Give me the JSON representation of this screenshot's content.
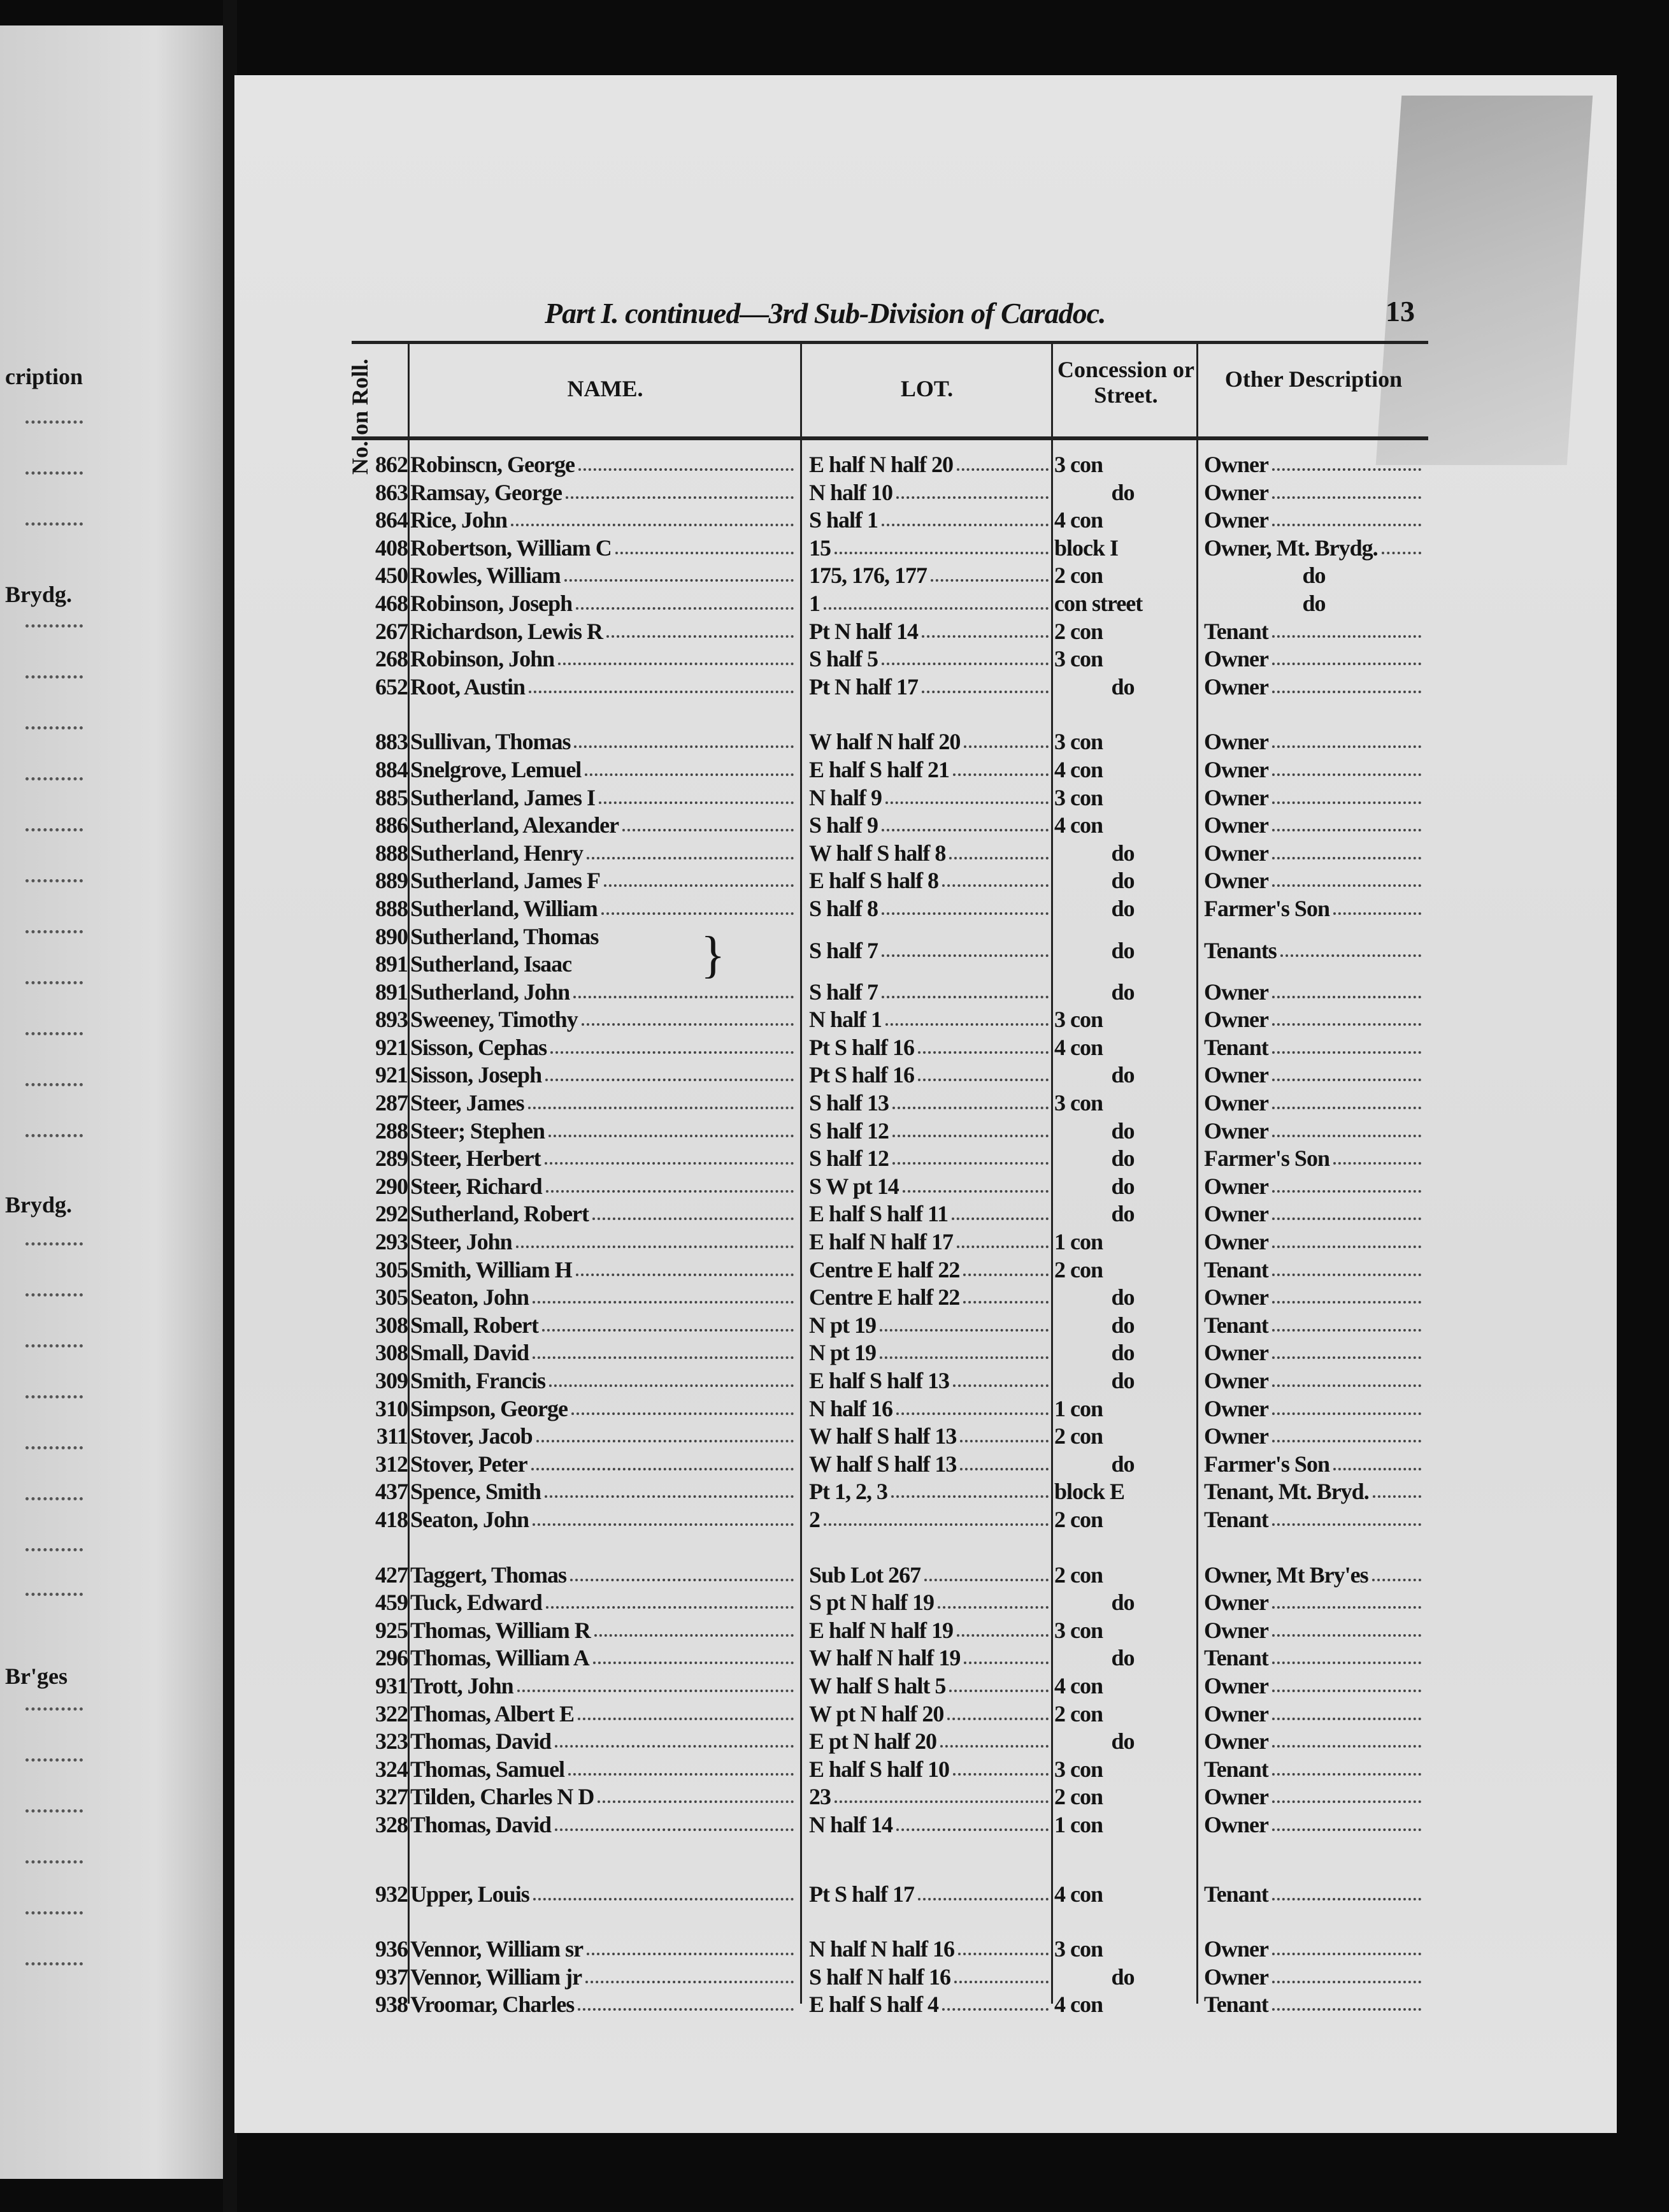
{
  "left_page": {
    "fragments": [
      "cription",
      "Brydg.",
      "Brydg.",
      "Br'ges"
    ]
  },
  "header": {
    "title": "Part I. continued—3rd Sub-Division of Caradoc.",
    "page_number": "13",
    "columns": {
      "roll": "No. on Roll.",
      "name": "NAME.",
      "lot": "LOT.",
      "concession": "Concession or Street.",
      "other": "Other Description"
    }
  },
  "groups": [
    {
      "rows": [
        {
          "roll": "862",
          "name": "Robinscn, George",
          "lot": "E half N half 20",
          "conc": "3 con",
          "desc": "Owner"
        },
        {
          "roll": "863",
          "name": "Ramsay, George",
          "lot": "N half 10",
          "conc": "do",
          "desc": "Owner"
        },
        {
          "roll": "864",
          "name": "Rice, John",
          "lot": "S half 1",
          "conc": "4 con",
          "desc": "Owner"
        },
        {
          "roll": "408",
          "name": "Robertson, William C",
          "lot": "15",
          "conc": "block I",
          "desc": "Owner, Mt. Brydg."
        },
        {
          "roll": "450",
          "name": "Rowles, William",
          "lot": "175, 176, 177",
          "conc": "2 con",
          "desc": "do"
        },
        {
          "roll": "468",
          "name": "Robinson, Joseph",
          "lot": "1",
          "conc": "con street",
          "desc": "do"
        },
        {
          "roll": "267",
          "name": "Richardson, Lewis R",
          "lot": "Pt N half 14",
          "conc": "2 con",
          "desc": "Tenant"
        },
        {
          "roll": "268",
          "name": "Robinson, John",
          "lot": "S half 5",
          "conc": "3 con",
          "desc": "Owner"
        },
        {
          "roll": "652",
          "name": "Root, Austin",
          "lot": "Pt N half 17",
          "conc": "do",
          "desc": "Owner"
        }
      ]
    },
    {
      "rows": [
        {
          "roll": "883",
          "name": "Sullivan, Thomas",
          "lot": "W half N half 20",
          "conc": "3 con",
          "desc": "Owner"
        },
        {
          "roll": "884",
          "name": "Snelgrove, Lemuel",
          "lot": "E half S half 21",
          "conc": "4 con",
          "desc": "Owner"
        },
        {
          "roll": "885",
          "name": "Sutherland, James I",
          "lot": "N half 9",
          "conc": "3 con",
          "desc": "Owner"
        },
        {
          "roll": "886",
          "name": "Sutherland, Alexander",
          "lot": "S half 9",
          "conc": "4 con",
          "desc": "Owner"
        },
        {
          "roll": "888",
          "name": "Sutherland, Henry",
          "lot": "W half S half 8",
          "conc": "do",
          "desc": "Owner"
        },
        {
          "roll": "889",
          "name": "Sutherland, James F",
          "lot": "E half S half 8",
          "conc": "do",
          "desc": "Owner"
        },
        {
          "roll": "888",
          "name": "Sutherland, William",
          "lot": "S half 8",
          "conc": "do",
          "desc": "Farmer's Son"
        },
        {
          "roll": "890",
          "name": "Sutherland, Thomas",
          "lot": "S half 7",
          "conc": "do",
          "desc": "Tenants",
          "brace": true
        },
        {
          "roll": "891",
          "name": "Sutherland, Isaac",
          "lot": "",
          "conc": "",
          "desc": "",
          "braced": true
        },
        {
          "roll": "891",
          "name": "Sutherland, John",
          "lot": "S half 7",
          "conc": "do",
          "desc": "Owner"
        },
        {
          "roll": "893",
          "name": "Sweeney, Timothy",
          "lot": "N half 1",
          "conc": "3 con",
          "desc": "Owner"
        },
        {
          "roll": "921",
          "name": "Sisson, Cephas",
          "lot": "Pt S half 16",
          "conc": "4 con",
          "desc": "Tenant"
        },
        {
          "roll": "921",
          "name": "Sisson, Joseph",
          "lot": "Pt S half 16",
          "conc": "do",
          "desc": "Owner"
        },
        {
          "roll": "287",
          "name": "Steer, James",
          "lot": "S half 13",
          "conc": "3 con",
          "desc": "Owner"
        },
        {
          "roll": "288",
          "name": "Steer; Stephen",
          "lot": "S half 12",
          "conc": "do",
          "desc": "Owner"
        },
        {
          "roll": "289",
          "name": "Steer, Herbert",
          "lot": "S half 12",
          "conc": "do",
          "desc": "Farmer's Son"
        },
        {
          "roll": "290",
          "name": "Steer, Richard",
          "lot": "S W pt 14",
          "conc": "do",
          "desc": "Owner"
        },
        {
          "roll": "292",
          "name": "Sutherland, Robert",
          "lot": "E half S half 11",
          "conc": "do",
          "desc": "Owner"
        },
        {
          "roll": "293",
          "name": "Steer, John",
          "lot": "E half N half 17",
          "conc": "1 con",
          "desc": "Owner"
        },
        {
          "roll": "305",
          "name": "Smith, William H",
          "lot": "Centre E half 22",
          "conc": "2 con",
          "desc": "Tenant"
        },
        {
          "roll": "305",
          "name": "Seaton, John",
          "lot": "Centre E half 22",
          "conc": "do",
          "desc": "Owner"
        },
        {
          "roll": "308",
          "name": "Small, Robert",
          "lot": "N pt 19",
          "conc": "do",
          "desc": "Tenant"
        },
        {
          "roll": "308",
          "name": "Small, David",
          "lot": "N pt 19",
          "conc": "do",
          "desc": "Owner"
        },
        {
          "roll": "309",
          "name": "Smith, Francis",
          "lot": "E half S half 13",
          "conc": "do",
          "desc": "Owner"
        },
        {
          "roll": "310",
          "name": "Simpson, George",
          "lot": "N half 16",
          "conc": "1 con",
          "desc": "Owner"
        },
        {
          "roll": "311",
          "name": "Stover, Jacob",
          "lot": "W half S half 13",
          "conc": "2 con",
          "desc": "Owner"
        },
        {
          "roll": "312",
          "name": "Stover, Peter",
          "lot": "W half S half 13",
          "conc": "do",
          "desc": "Farmer's Son"
        },
        {
          "roll": "437",
          "name": "Spence, Smith",
          "lot": "Pt 1, 2, 3",
          "conc": "block E",
          "desc": "Tenant, Mt. Bryd."
        },
        {
          "roll": "418",
          "name": "Seaton, John",
          "lot": "2",
          "conc": "2 con",
          "desc": "Tenant"
        }
      ]
    },
    {
      "rows": [
        {
          "roll": "427",
          "name": "Taggert, Thomas",
          "lot": "Sub Lot 267",
          "conc": "2 con",
          "desc": "Owner, Mt Bry'es"
        },
        {
          "roll": "459",
          "name": "Tuck, Edward",
          "lot": "S pt N half 19",
          "conc": "do",
          "desc": "Owner"
        },
        {
          "roll": "925",
          "name": "Thomas, William R",
          "lot": "E half N half 19",
          "conc": "3 con",
          "desc": "Owner"
        },
        {
          "roll": "296",
          "name": "Thomas, William A",
          "lot": "W half N half 19",
          "conc": "do",
          "desc": "Tenant"
        },
        {
          "roll": "931",
          "name": "Trott, John",
          "lot": "W half S halt 5",
          "conc": "4 con",
          "desc": "Owner"
        },
        {
          "roll": "322",
          "name": "Thomas, Albert E",
          "lot": "W pt N half 20",
          "conc": "2 con",
          "desc": "Owner"
        },
        {
          "roll": "323",
          "name": "Thomas, David",
          "lot": "E pt N half 20",
          "conc": "do",
          "desc": "Owner"
        },
        {
          "roll": "324",
          "name": "Thomas, Samuel",
          "lot": "E half S half 10",
          "conc": "3 con",
          "desc": "Tenant"
        },
        {
          "roll": "327",
          "name": "Tilden, Charles N D",
          "lot": "23",
          "conc": "2 con",
          "desc": "Owner"
        },
        {
          "roll": "328",
          "name": "Thomas, David",
          "lot": "N half 14",
          "conc": "1 con",
          "desc": "Owner"
        }
      ]
    },
    {
      "rows": [
        {
          "roll": "932",
          "name": "Upper, Louis",
          "lot": "Pt S half 17",
          "conc": "4 con",
          "desc": "Tenant"
        }
      ]
    },
    {
      "rows": [
        {
          "roll": "936",
          "name": "Vennor, William sr",
          "lot": "N half N half 16",
          "conc": "3 con",
          "desc": "Owner"
        },
        {
          "roll": "937",
          "name": "Vennor, William jr",
          "lot": "S half N half 16",
          "conc": "do",
          "desc": "Owner"
        },
        {
          "roll": "938",
          "name": "Vroomar, Charles",
          "lot": "E half S half 4",
          "conc": "4 con",
          "desc": "Tenant"
        }
      ]
    }
  ]
}
